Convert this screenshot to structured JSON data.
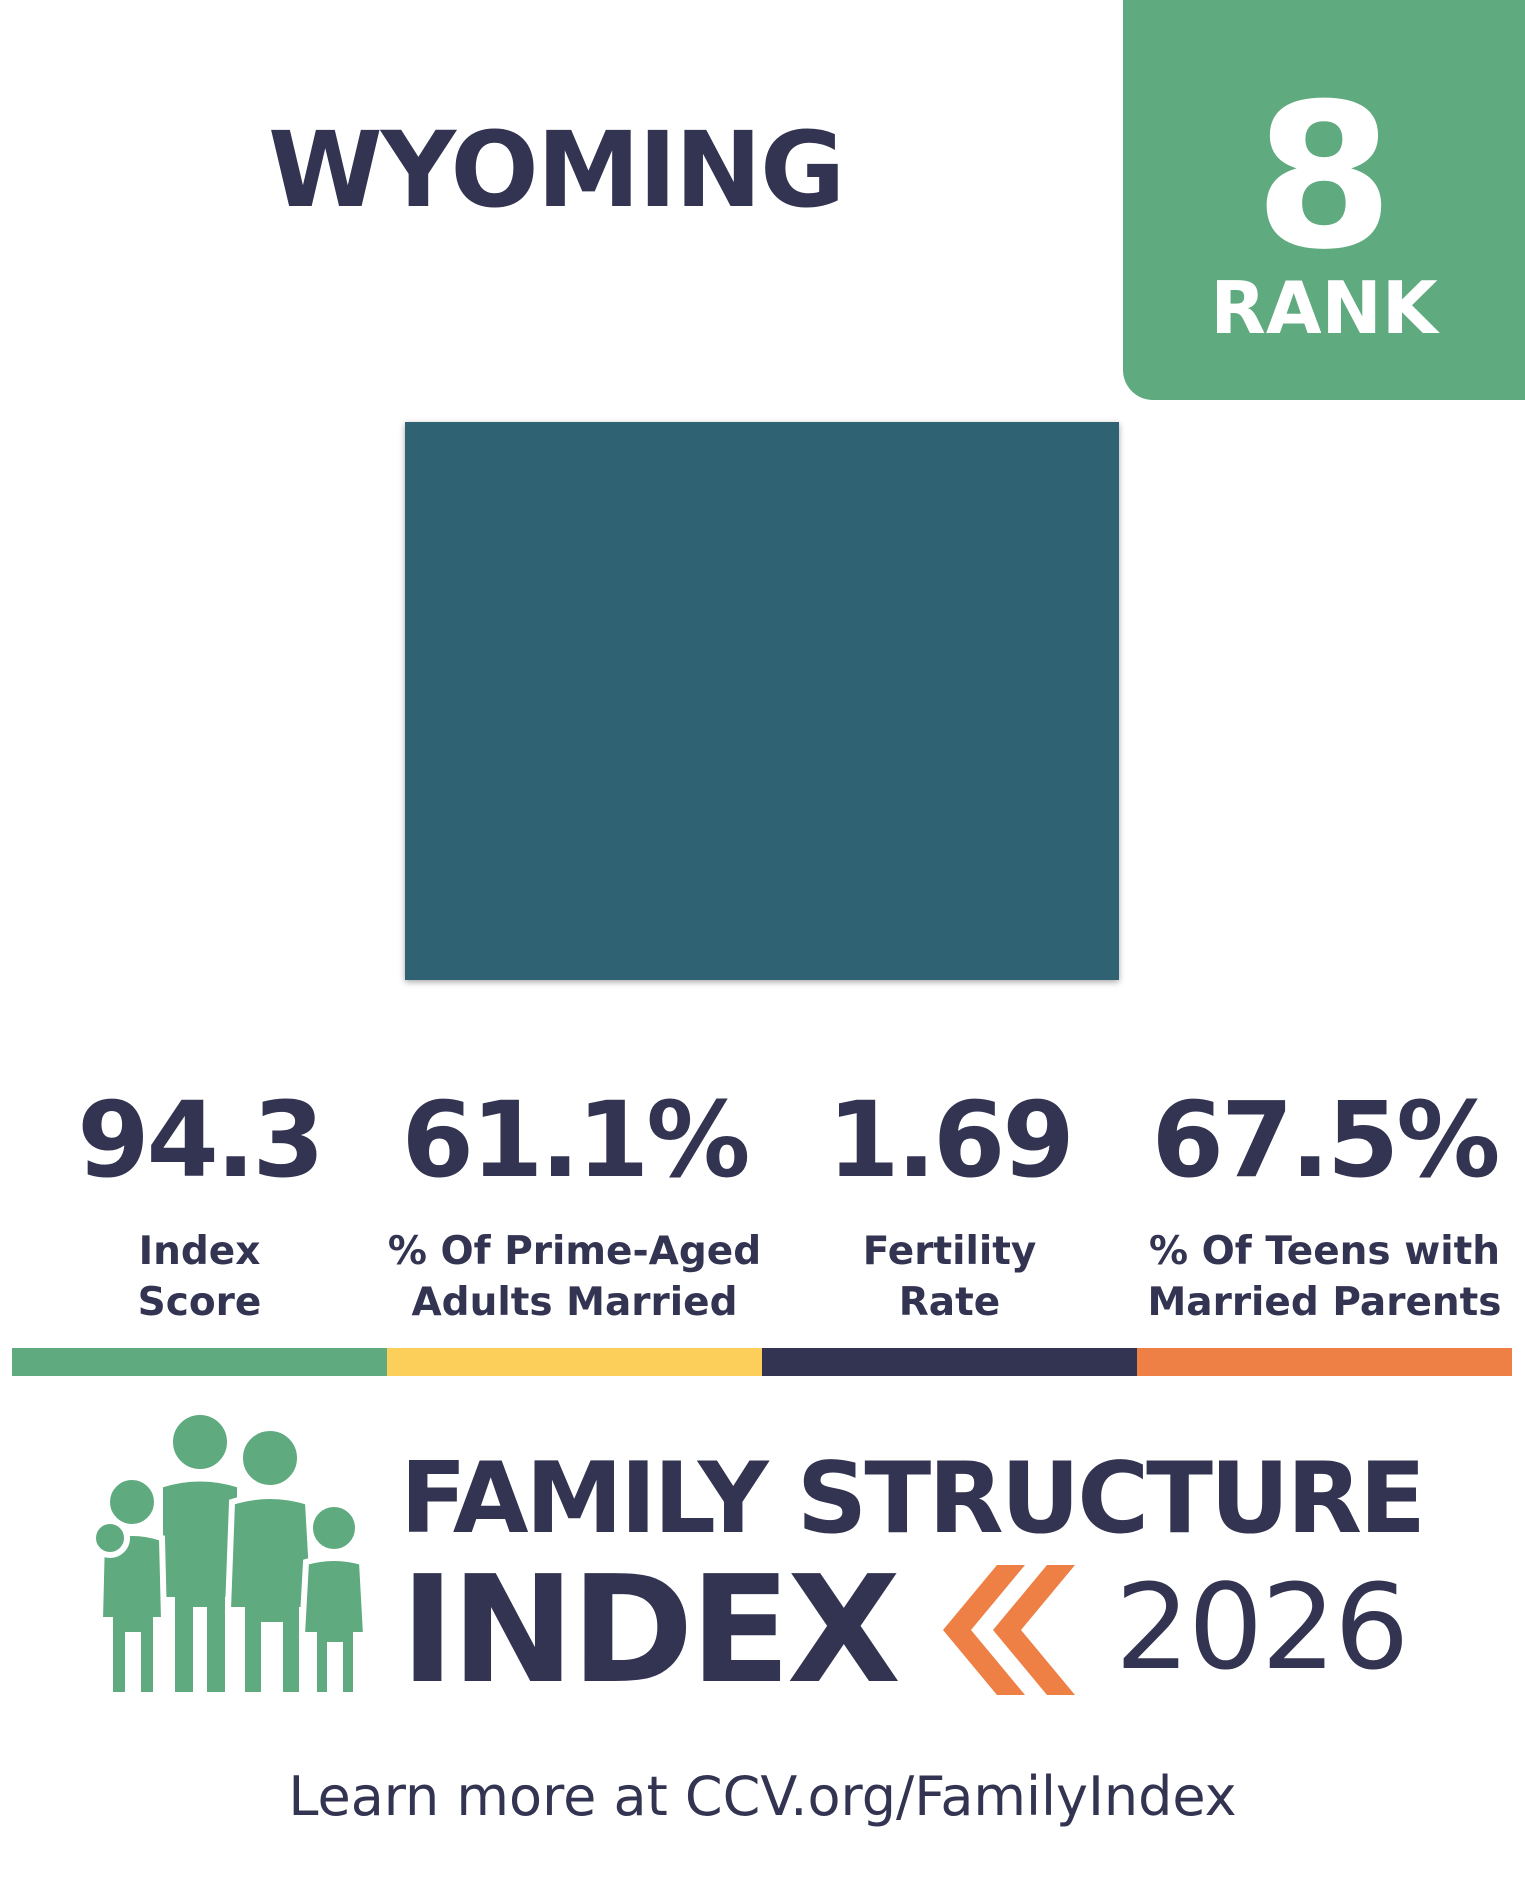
{
  "state": {
    "name": "WYOMING",
    "shape_color": "#2f6273"
  },
  "rank": {
    "value": "8",
    "label": "RANK",
    "color": "#5faa7e"
  },
  "stats": [
    {
      "value": "94.3",
      "label_lines": [
        "Index",
        "Score"
      ],
      "color": "#5faa7e"
    },
    {
      "value": "61.1%",
      "label_lines": [
        "% Of Prime-Aged",
        "Adults Married"
      ],
      "color": "#fbcf5a"
    },
    {
      "value": "1.69",
      "label_lines": [
        "Fertility",
        "Rate"
      ],
      "color": "#333352"
    },
    {
      "value": "67.5%",
      "label_lines": [
        "% Of Teens with",
        "Married Parents"
      ],
      "color": "#ee7f45"
    }
  ],
  "brand": {
    "line1": "FAMILY STRUCTURE",
    "line2": "INDEX",
    "year": "2026",
    "logo_icon": "family-icon",
    "accent_icon": "double-chevron-icon",
    "accent_color": "#ee7f45"
  },
  "footer": {
    "text": "Learn more at CCV.org/FamilyIndex"
  }
}
